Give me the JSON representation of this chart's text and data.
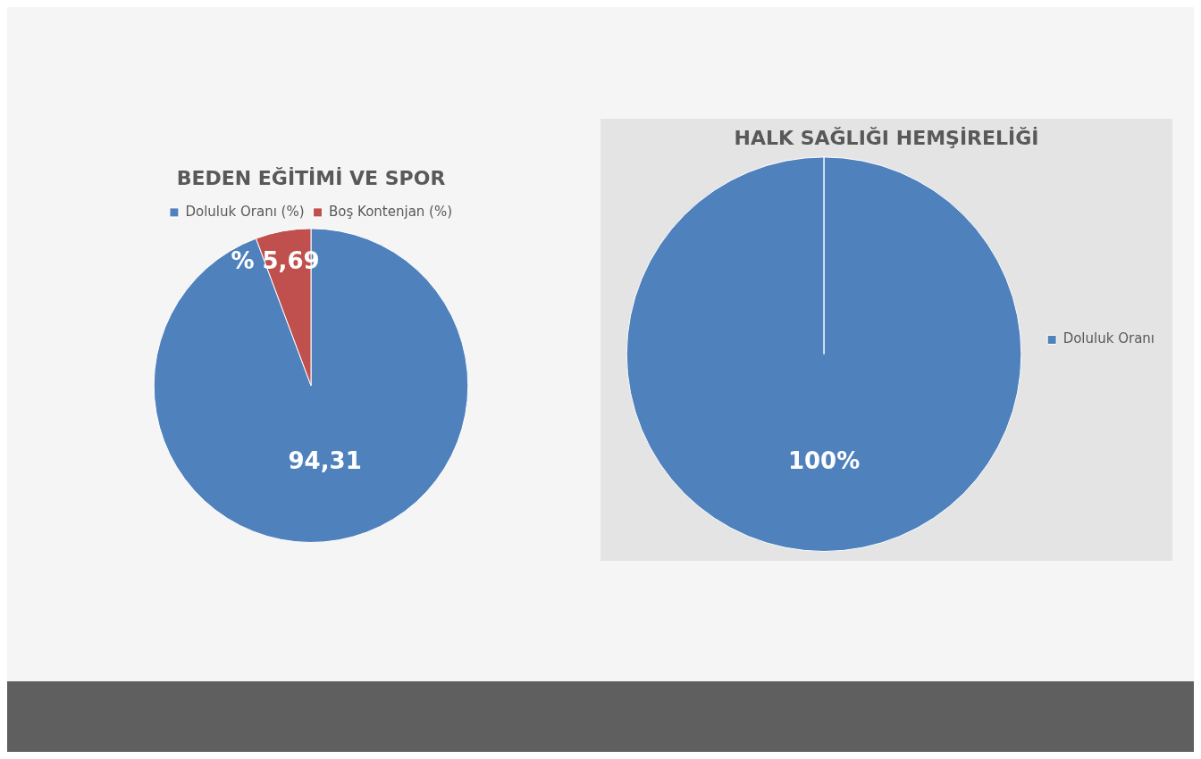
{
  "chart_data": [
    {
      "type": "pie",
      "title": "BEDEN EĞİTİMİ VE SPOR",
      "categories": [
        "Doluluk Oranı (%)",
        "Boş Kontenjan (%)"
      ],
      "values": [
        94.31,
        5.69
      ],
      "value_labels": [
        "94,31",
        "% 5,69"
      ],
      "colors": [
        "#4f81bd",
        "#c0504d"
      ],
      "legend": "top"
    },
    {
      "type": "pie",
      "title": "HALK SAĞLIĞI HEMŞİRELİĞİ",
      "categories": [
        "Doluluk Oranı"
      ],
      "values": [
        100
      ],
      "value_labels": [
        "100%"
      ],
      "colors": [
        "#4f81bd"
      ],
      "legend": "right"
    }
  ]
}
